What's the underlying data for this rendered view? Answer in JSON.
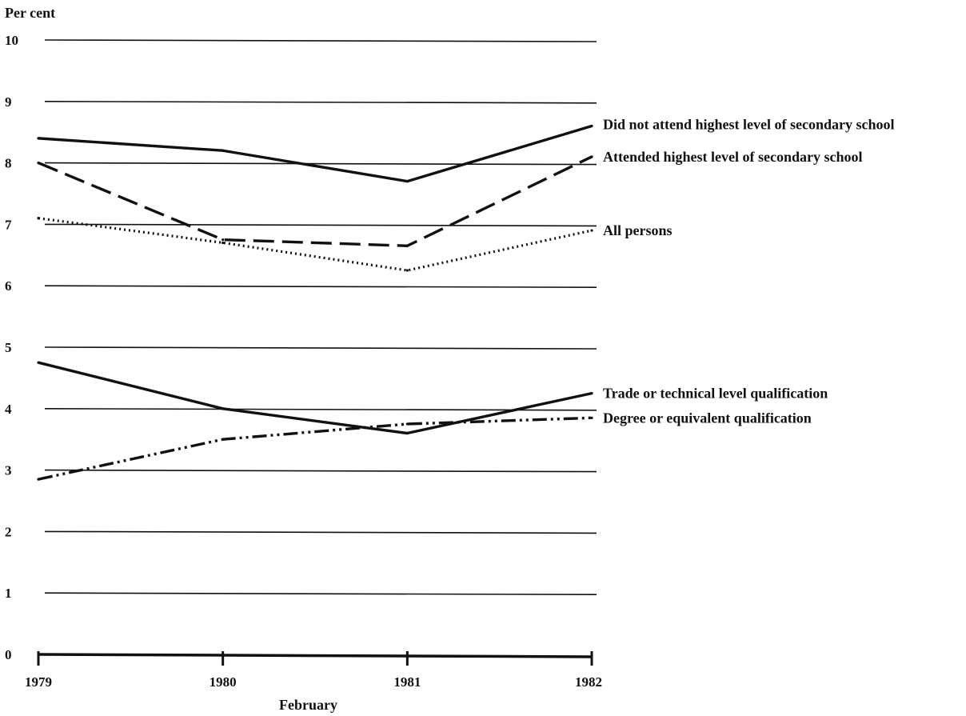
{
  "chart_data": {
    "type": "line",
    "title": "",
    "ylabel": "Per cent",
    "xlabel": "February",
    "categories": [
      "1979",
      "1980",
      "1981",
      "1982"
    ],
    "yticks": [
      "0",
      "1",
      "2",
      "3",
      "4",
      "5",
      "6",
      "7",
      "8",
      "9",
      "10"
    ],
    "ylim": [
      0,
      10
    ],
    "grid": true,
    "legend": "direct labels at right end of each line",
    "series": [
      {
        "name": "Did not attend highest level of secondary school",
        "style": "solid",
        "values": [
          8.4,
          8.2,
          7.7,
          8.6
        ]
      },
      {
        "name": "Attended highest level of secondary school",
        "style": "dashed",
        "values": [
          8.0,
          6.75,
          6.65,
          8.1
        ]
      },
      {
        "name": "All persons",
        "style": "dotted",
        "values": [
          7.1,
          6.7,
          6.25,
          6.9
        ]
      },
      {
        "name": "Trade or technical level qualification",
        "style": "solid",
        "values": [
          4.75,
          4.0,
          3.6,
          4.25
        ]
      },
      {
        "name": "Degree or equivalent qualification",
        "style": "dash-dot",
        "values": [
          2.85,
          3.5,
          3.75,
          3.85
        ]
      }
    ]
  }
}
